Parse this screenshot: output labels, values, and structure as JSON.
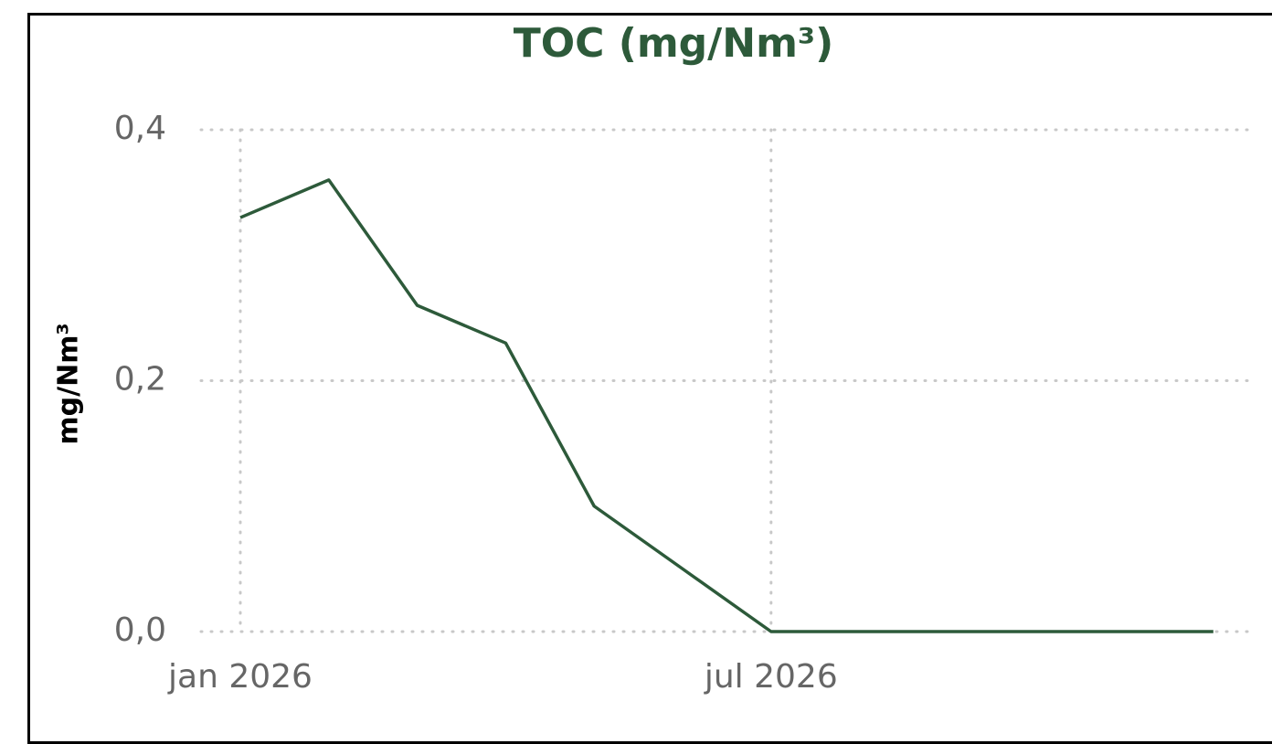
{
  "chart_data": {
    "type": "line",
    "title": "TOC (mg/Nm³)",
    "y_label": "mg/Nm³",
    "categories": [
      "jan 2026",
      null,
      null,
      null,
      null,
      null,
      "jul 2026",
      null,
      null,
      null,
      null,
      null
    ],
    "series": [
      {
        "name": "TOC",
        "color": "#2d5a3a",
        "values": [
          0.33,
          0.36,
          0.26,
          0.23,
          0.1,
          0.05,
          0,
          0,
          0,
          0,
          0,
          0
        ]
      }
    ],
    "ylim": [
      0,
      0.4
    ],
    "yticks": [
      {
        "value": 0,
        "label": "0,0"
      },
      {
        "value": 0.2,
        "label": "0,2"
      },
      {
        "value": 0.4,
        "label": "0,4"
      }
    ],
    "grid": true
  }
}
